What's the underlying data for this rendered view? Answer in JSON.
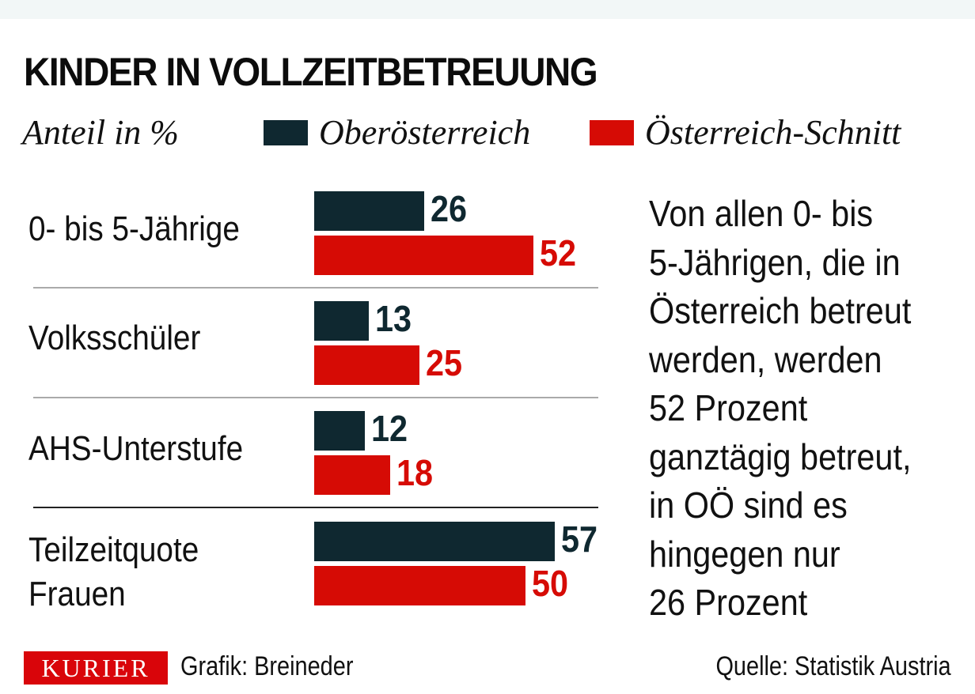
{
  "chart_data": {
    "type": "bar",
    "orientation": "horizontal",
    "title": "KINDER IN VOLLZEITBETREUUNG",
    "subtitle": "Anteil in %",
    "categories": [
      "0- bis 5-Jährige",
      "Volksschüler",
      "AHS-Unterstufe",
      "Teilzeitquote Frauen"
    ],
    "series": [
      {
        "name": "Oberösterreich",
        "color": "#0f2830",
        "values": [
          26,
          13,
          12,
          57
        ]
      },
      {
        "name": "Österreich-Schnitt",
        "color": "#d60b05",
        "values": [
          52,
          25,
          18,
          50
        ]
      }
    ],
    "xlim": [
      0,
      60
    ],
    "legend": "top",
    "grid": false
  },
  "note_lines": [
    "Von allen 0- bis",
    "5-Jährigen, die in",
    "Österreich betreut",
    "werden, werden",
    "52 Prozent",
    "ganztägig betreut,",
    "in OÖ sind es",
    "hingegen nur",
    "26 Prozent"
  ],
  "footer": {
    "logo": "KURIER",
    "credit": "Grafik: Breineder",
    "source": "Quelle: Statistik Austria"
  }
}
